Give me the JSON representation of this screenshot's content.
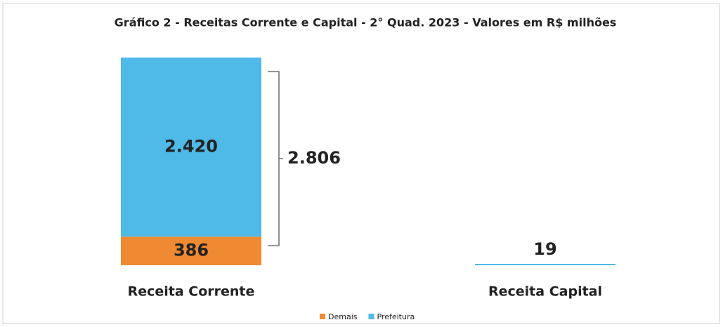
{
  "chart_data": {
    "type": "stacked-bar",
    "title": "Gráfico 2 - Receitas Corrente e Capital - 2° Quad. 2023 - Valores em R$ milhões",
    "categories": [
      "Receita Corrente",
      "Receita Capital"
    ],
    "series": [
      {
        "name": "Demais",
        "color": "#f08a32",
        "values": [
          386,
          null
        ],
        "value_labels": [
          "386",
          null
        ]
      },
      {
        "name": "Prefeitura",
        "color": "#4fb9e8",
        "values": [
          2420,
          19
        ],
        "value_labels": [
          "2.420",
          "19"
        ]
      }
    ],
    "annotations": [
      {
        "value": 2806,
        "label": "2.806"
      }
    ],
    "legend": "bottom"
  }
}
